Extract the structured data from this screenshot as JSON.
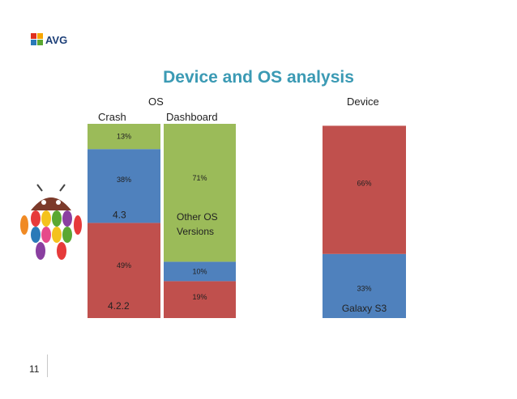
{
  "slide": {
    "title": "Device and OS analysis",
    "logo_text": "AVG",
    "number": "11",
    "headers": {
      "os": "OS",
      "device": "Device",
      "crash": "Crash",
      "dashboard": "Dashboard"
    },
    "colors": {
      "title": "#3b9ab4",
      "red": "#c0504d",
      "blue": "#4f81bd",
      "green": "#9bbb59"
    }
  },
  "chart_data": {
    "type": "bar",
    "stacked": true,
    "bars": [
      {
        "name": "Crash",
        "segments": [
          {
            "value": 49,
            "label": "49%",
            "name": "4.2.2",
            "color": "#c0504d"
          },
          {
            "value": 38,
            "label": "38%",
            "name": "4.3",
            "color": "#4f81bd"
          },
          {
            "value": 13,
            "label": "13%",
            "name": "",
            "color": "#9bbb59"
          }
        ]
      },
      {
        "name": "Dashboard",
        "segments": [
          {
            "value": 19,
            "label": "19%",
            "name": "",
            "color": "#c0504d"
          },
          {
            "value": 10,
            "label": "10%",
            "name": "",
            "color": "#4f81bd"
          },
          {
            "value": 71,
            "label": "71%",
            "name": "Other OS Versions",
            "color": "#9bbb59"
          }
        ]
      },
      {
        "name": "Device",
        "segments": [
          {
            "value": 33,
            "label": "33%",
            "name": "Galaxy S3",
            "color": "#4f81bd"
          },
          {
            "value": 66,
            "label": "66%",
            "name": "",
            "color": "#c0504d"
          }
        ]
      }
    ],
    "ylim": [
      0,
      100
    ]
  }
}
